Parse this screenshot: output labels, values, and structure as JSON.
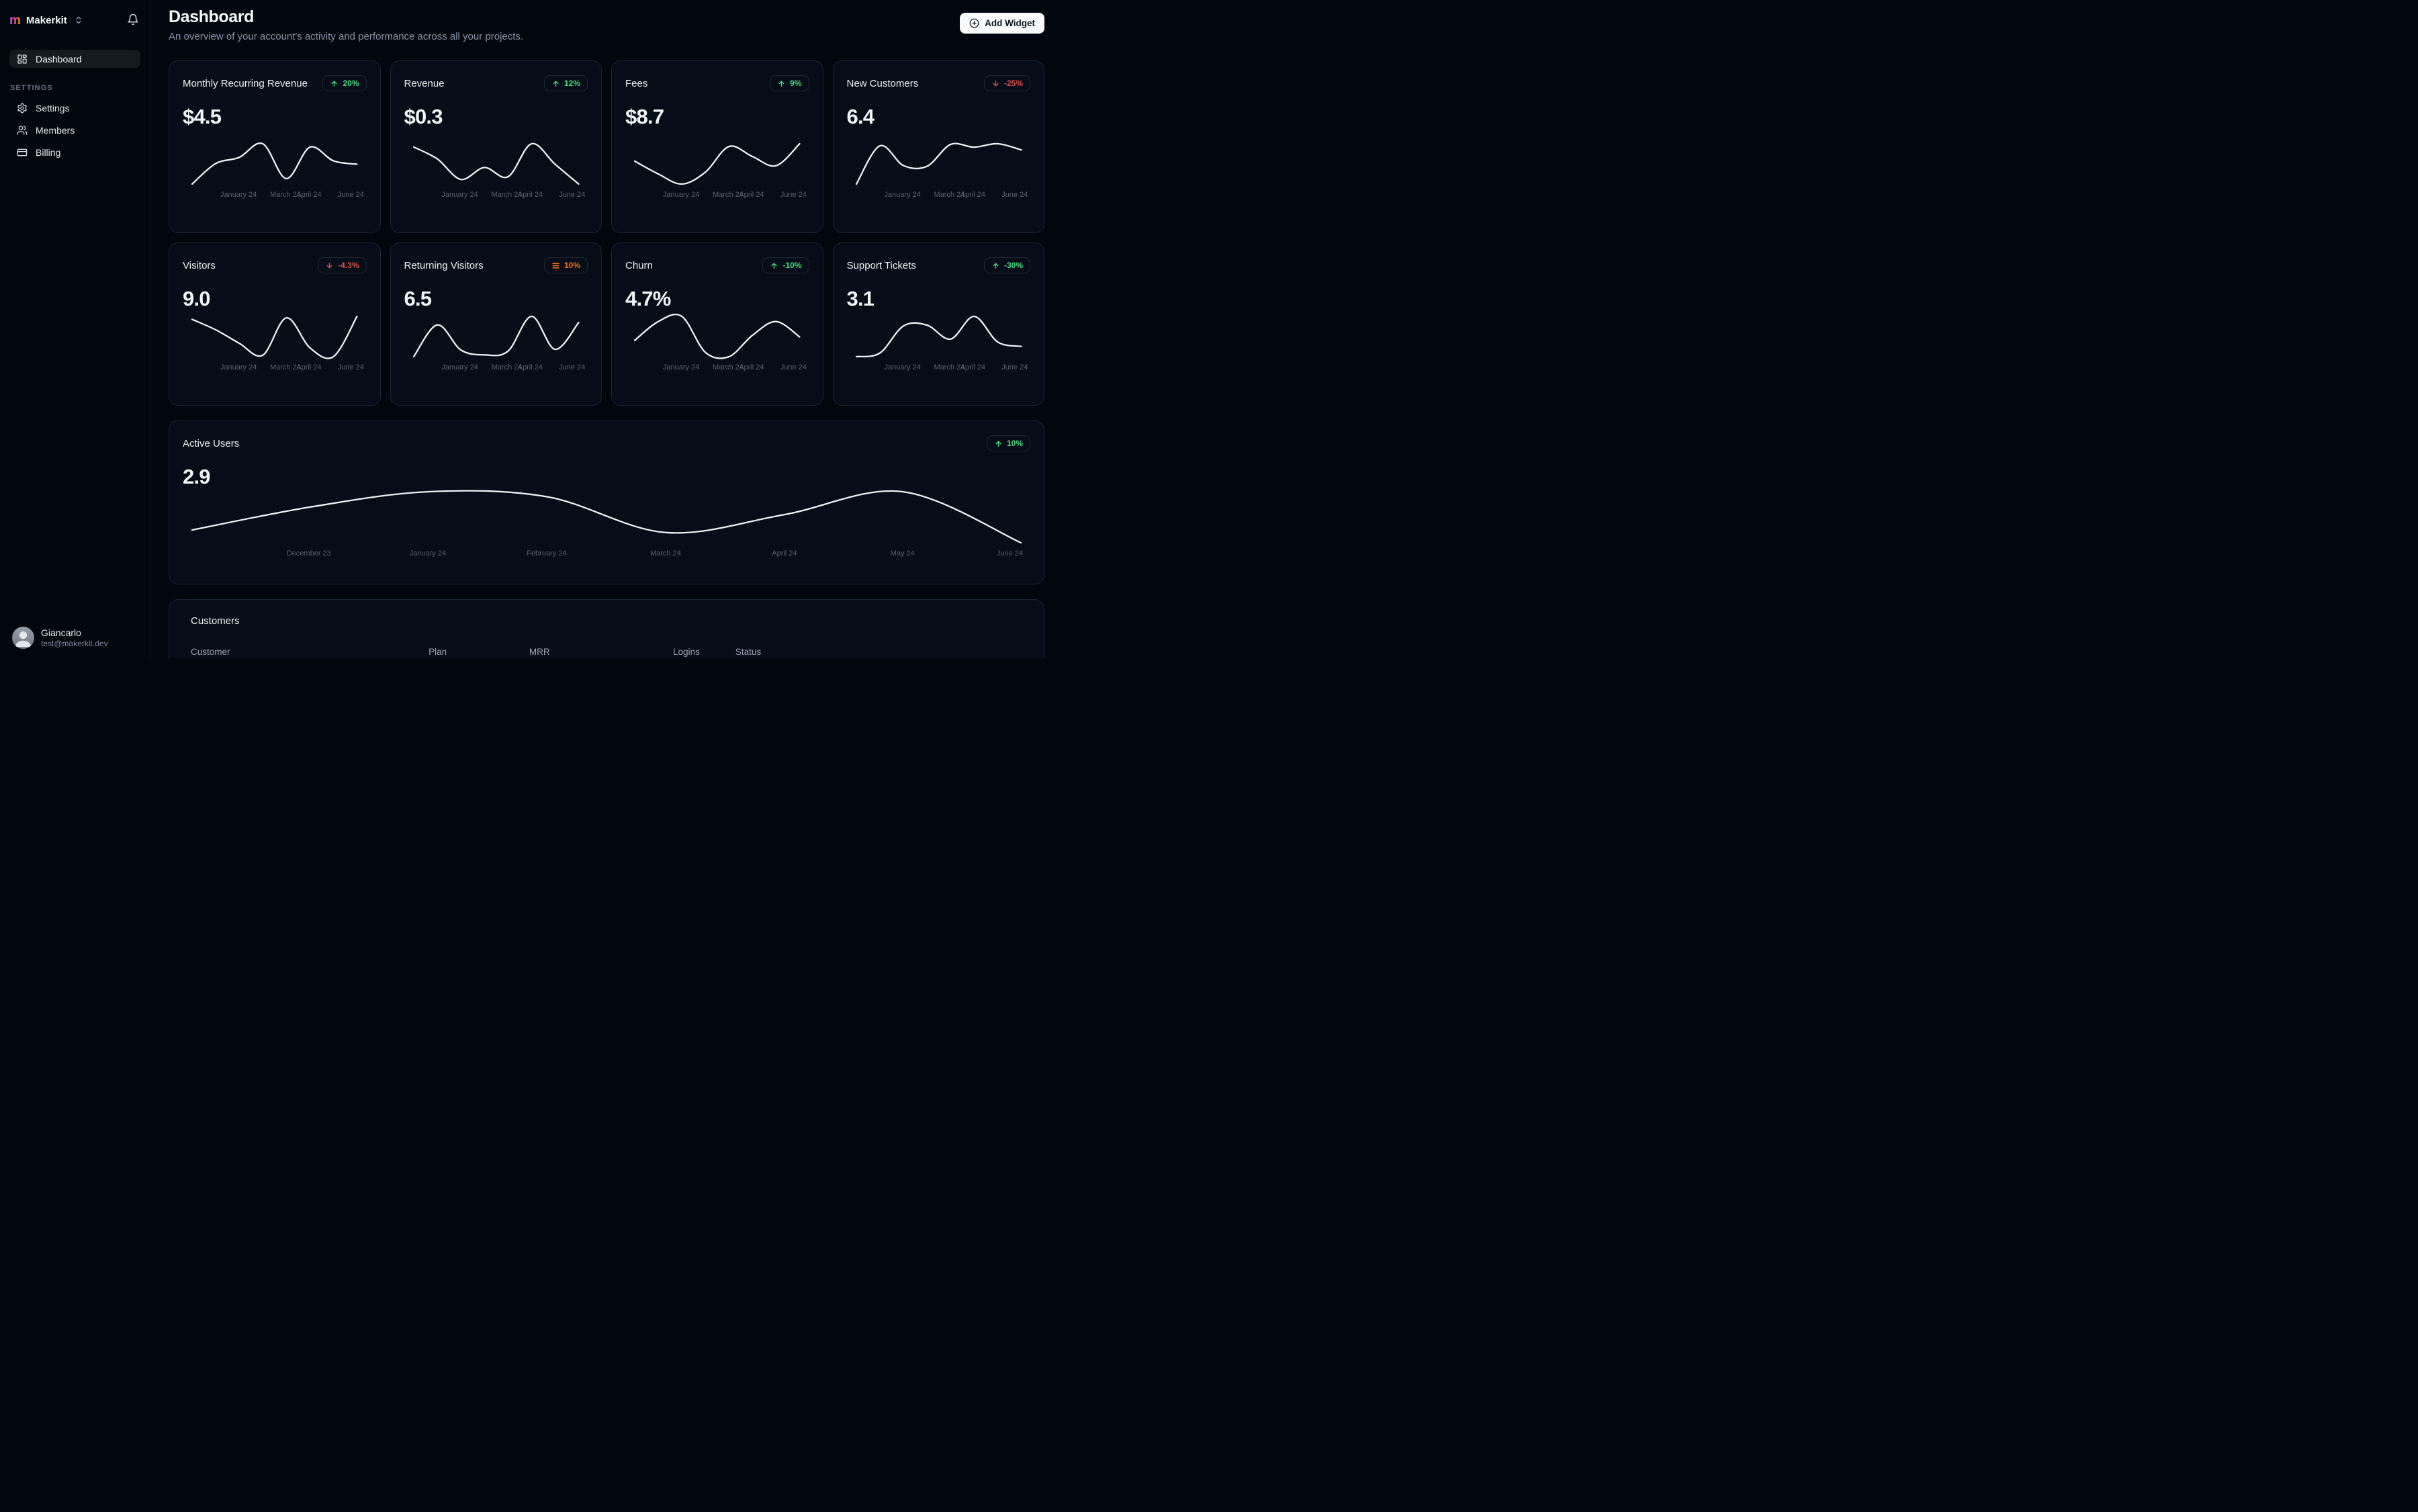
{
  "sidebar": {
    "logo_letter": "m",
    "brand": "Makerkit",
    "nav_dashboard": "Dashboard",
    "section_label": "SETTINGS",
    "items": [
      {
        "label": "Settings",
        "icon": "gear-icon"
      },
      {
        "label": "Members",
        "icon": "users-icon"
      },
      {
        "label": "Billing",
        "icon": "credit-card-icon"
      }
    ],
    "user": {
      "name": "Giancarlo",
      "email": "test@makerkit.dev"
    }
  },
  "header": {
    "title": "Dashboard",
    "subtitle": "An overview of your account's activity and performance across all your projects.",
    "add_widget_label": "Add Widget"
  },
  "colors": {
    "positive": "#4ade80",
    "negative": "#d9524c",
    "neutral": "#f97316",
    "line": "#eef2f6"
  },
  "chart_data": [
    {
      "type": "line",
      "title": "Monthly Recurring Revenue",
      "value": "$4.5",
      "badge": {
        "icon": "arrow-up",
        "color": "green",
        "text": "20%"
      },
      "y_scale": "relative-sparkline-0-10",
      "y": [
        2.5,
        5.5,
        6.4,
        8.4,
        3.3,
        7.9,
        5.9,
        5.4
      ],
      "x_ticks": [
        {
          "label": "January 24",
          "pos": 0.285
        },
        {
          "label": "March 24",
          "pos": 0.565
        },
        {
          "label": "April 24",
          "pos": 0.705
        },
        {
          "label": "June 24",
          "pos": 0.955
        }
      ]
    },
    {
      "type": "line",
      "title": "Revenue",
      "value": "$0.3",
      "badge": {
        "icon": "arrow-up",
        "color": "green",
        "text": "12%"
      },
      "y_scale": "relative-sparkline-0-10",
      "y": [
        7.8,
        6.0,
        2.9,
        4.7,
        3.3,
        8.3,
        5.2,
        2.2
      ],
      "x_ticks": [
        {
          "label": "January 24",
          "pos": 0.285
        },
        {
          "label": "March 24",
          "pos": 0.565
        },
        {
          "label": "April 24",
          "pos": 0.705
        },
        {
          "label": "June 24",
          "pos": 0.955
        }
      ]
    },
    {
      "type": "line",
      "title": "Fees",
      "value": "$8.7",
      "badge": {
        "icon": "arrow-up",
        "color": "green",
        "text": "9%"
      },
      "y_scale": "relative-sparkline-0-10",
      "y": [
        5.5,
        4.1,
        3.0,
        4.3,
        7.1,
        6.0,
        5.0,
        7.4
      ],
      "x_ticks": [
        {
          "label": "January 24",
          "pos": 0.285
        },
        {
          "label": "March 24",
          "pos": 0.565
        },
        {
          "label": "April 24",
          "pos": 0.705
        },
        {
          "label": "June 24",
          "pos": 0.955
        }
      ]
    },
    {
      "type": "line",
      "title": "New Customers",
      "value": "6.4",
      "badge": {
        "icon": "arrow-down",
        "color": "red",
        "text": "-25%"
      },
      "y_scale": "relative-sparkline-0-10",
      "y": [
        1.5,
        7.1,
        4.2,
        4.1,
        7.3,
        6.9,
        7.4,
        6.5
      ],
      "x_ticks": [
        {
          "label": "January 24",
          "pos": 0.285
        },
        {
          "label": "March 24",
          "pos": 0.565
        },
        {
          "label": "April 24",
          "pos": 0.705
        },
        {
          "label": "June 24",
          "pos": 0.955
        }
      ]
    },
    {
      "type": "line",
      "title": "Visitors",
      "value": "9.0",
      "badge": {
        "icon": "arrow-down",
        "color": "red",
        "text": "-4.3%"
      },
      "y_scale": "relative-sparkline-0-10",
      "y": [
        6.7,
        6.0,
        5.1,
        4.3,
        6.8,
        4.8,
        4.2,
        6.9
      ],
      "x_ticks": [
        {
          "label": "January 24",
          "pos": 0.285
        },
        {
          "label": "March 24",
          "pos": 0.565
        },
        {
          "label": "April 24",
          "pos": 0.705
        },
        {
          "label": "June 24",
          "pos": 0.955
        }
      ]
    },
    {
      "type": "line",
      "title": "Returning Visitors",
      "value": "6.5",
      "badge": {
        "icon": "menu",
        "color": "orange",
        "text": "10%"
      },
      "y_scale": "relative-sparkline-0-10",
      "y": [
        2.0,
        7.2,
        3.1,
        2.3,
        2.9,
        8.6,
        3.2,
        7.6
      ],
      "x_ticks": [
        {
          "label": "January 24",
          "pos": 0.285
        },
        {
          "label": "March 24",
          "pos": 0.565
        },
        {
          "label": "April 24",
          "pos": 0.705
        },
        {
          "label": "June 24",
          "pos": 0.955
        }
      ]
    },
    {
      "type": "line",
      "title": "Churn",
      "value": "4.7%",
      "badge": {
        "icon": "arrow-up",
        "color": "green",
        "text": "-10%"
      },
      "y_scale": "relative-sparkline-0-10",
      "y": [
        4.5,
        6.7,
        7.3,
        3.1,
        2.6,
        5.1,
        6.7,
        4.9
      ],
      "x_ticks": [
        {
          "label": "January 24",
          "pos": 0.285
        },
        {
          "label": "March 24",
          "pos": 0.565
        },
        {
          "label": "April 24",
          "pos": 0.705
        },
        {
          "label": "June 24",
          "pos": 0.955
        }
      ]
    },
    {
      "type": "line",
      "title": "Support Tickets",
      "value": "3.1",
      "badge": {
        "icon": "arrow-up",
        "color": "green",
        "text": "-30%"
      },
      "y_scale": "relative-sparkline-0-10",
      "y": [
        1.8,
        2.3,
        6.0,
        6.1,
        4.2,
        7.3,
        3.8,
        3.2
      ],
      "x_ticks": [
        {
          "label": "January 24",
          "pos": 0.285
        },
        {
          "label": "March 24",
          "pos": 0.565
        },
        {
          "label": "April 24",
          "pos": 0.705
        },
        {
          "label": "June 24",
          "pos": 0.955
        }
      ]
    },
    {
      "type": "line",
      "title": "Active Users",
      "value": "2.9",
      "badge": {
        "icon": "arrow-up",
        "color": "green",
        "text": "10%"
      },
      "y_scale": "relative-sparkline-0-10",
      "y": [
        4.3,
        5.2,
        5.8,
        5.6,
        4.2,
        4.9,
        5.8,
        3.8
      ],
      "x_ticks": [
        {
          "label": "December 23",
          "pos": 0.142
        },
        {
          "label": "January 24",
          "pos": 0.285
        },
        {
          "label": "February 24",
          "pos": 0.428
        },
        {
          "label": "March 24",
          "pos": 0.571
        },
        {
          "label": "April 24",
          "pos": 0.714
        },
        {
          "label": "May 24",
          "pos": 0.856
        },
        {
          "label": "June 24",
          "pos": 0.985
        }
      ]
    }
  ],
  "customers": {
    "title": "Customers",
    "columns": [
      "Customer",
      "Plan",
      "MRR",
      "Logins",
      "Status"
    ]
  }
}
